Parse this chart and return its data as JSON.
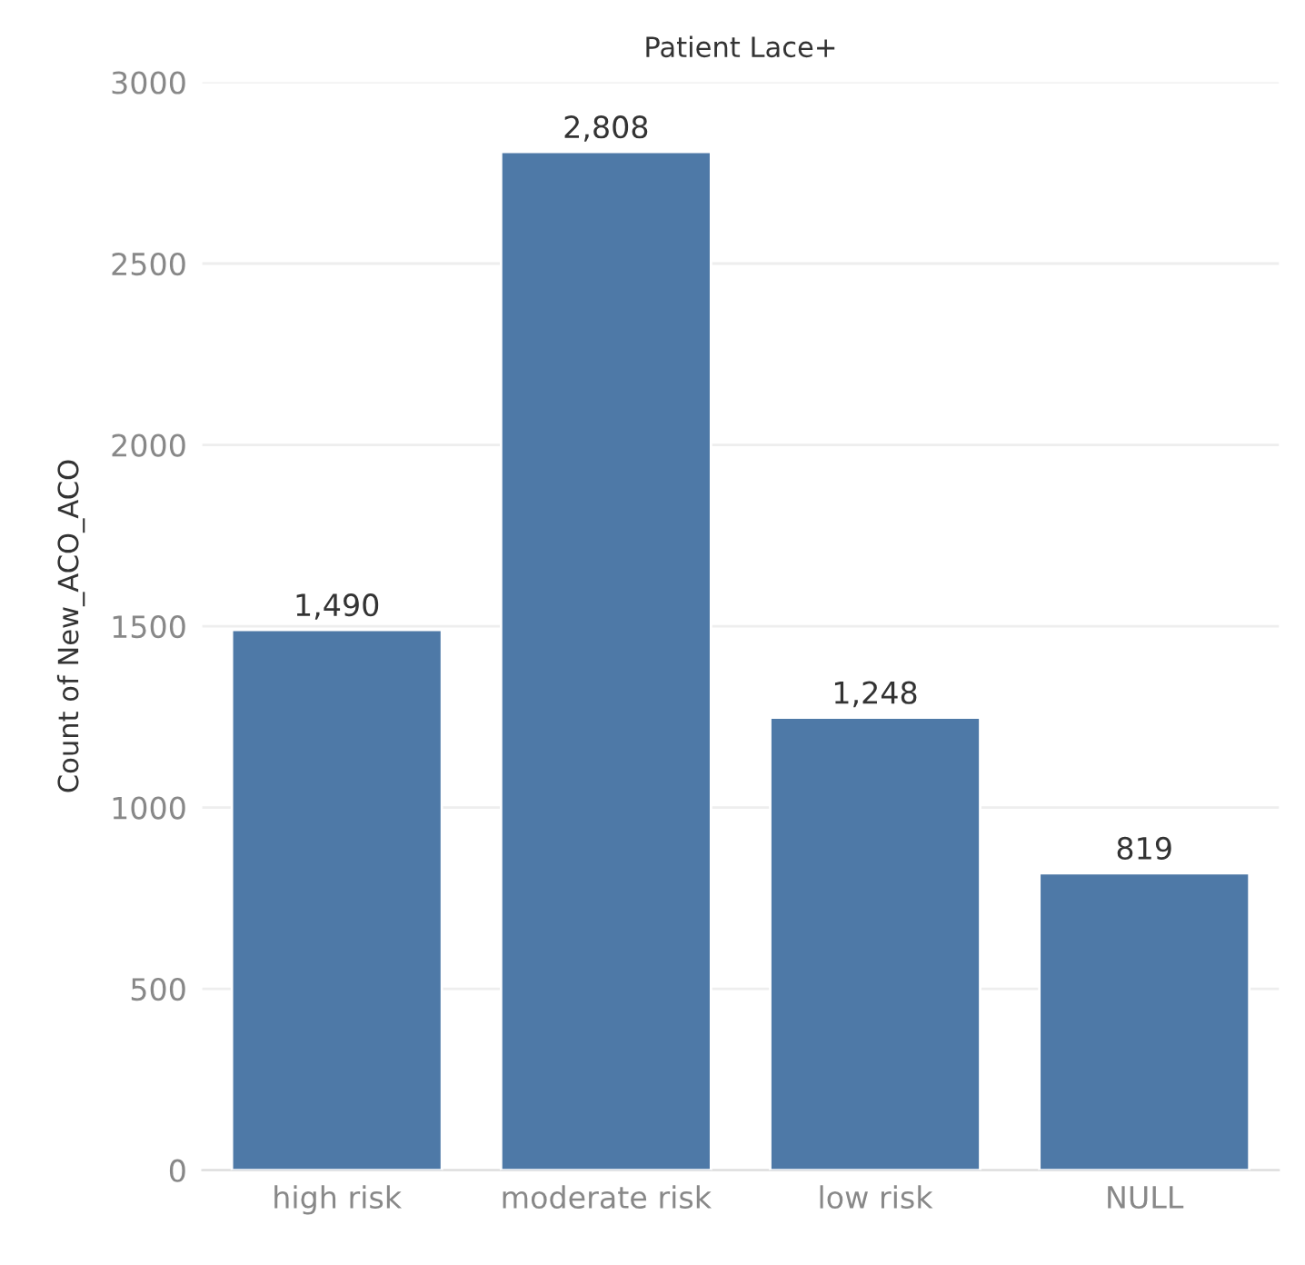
{
  "chart_data": {
    "type": "bar",
    "title": "Patient Lace+",
    "ylabel": "Count of New_ACO_ACO",
    "categories": [
      "high risk",
      "moderate risk",
      "low risk",
      "NULL"
    ],
    "values": [
      1490,
      2808,
      1248,
      819
    ],
    "value_labels": [
      "1,490",
      "2,808",
      "1,248",
      "819"
    ],
    "color": "#4e79a7",
    "ylim": [
      0,
      3000
    ],
    "yticks": [
      0,
      500,
      1000,
      1500,
      2000,
      2500,
      3000
    ],
    "grid": "y"
  }
}
